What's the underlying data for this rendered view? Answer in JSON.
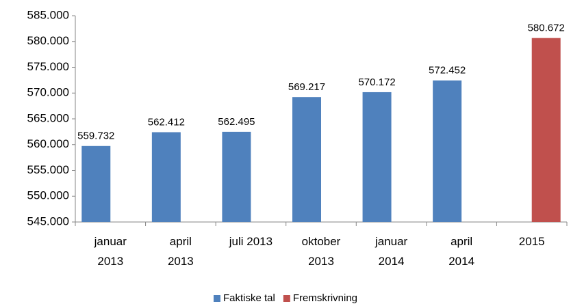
{
  "chart_data": {
    "type": "bar",
    "categories": [
      [
        "januar",
        "2013"
      ],
      [
        "april",
        "2013"
      ],
      [
        "juli 2013"
      ],
      [
        "oktober",
        "2013"
      ],
      [
        "januar",
        "2014"
      ],
      [
        "april",
        "2014"
      ],
      [
        "2015"
      ]
    ],
    "series": [
      {
        "name": "Faktiske tal",
        "color": "#4f81bd",
        "values": [
          559732,
          562412,
          562495,
          569217,
          570172,
          572452,
          null
        ],
        "value_labels": [
          "559.732",
          "562.412",
          "562.495",
          "569.217",
          "570.172",
          "572.452",
          null
        ]
      },
      {
        "name": "Fremskrivning",
        "color": "#c0504d",
        "values": [
          null,
          null,
          null,
          null,
          null,
          null,
          580672
        ],
        "value_labels": [
          null,
          null,
          null,
          null,
          null,
          null,
          "580.672"
        ]
      }
    ],
    "ylim": [
      545000,
      585000
    ],
    "yticks": [
      {
        "value": 545000,
        "label": "545.000"
      },
      {
        "value": 550000,
        "label": "550.000"
      },
      {
        "value": 555000,
        "label": "555.000"
      },
      {
        "value": 560000,
        "label": "560.000"
      },
      {
        "value": 565000,
        "label": "565.000"
      },
      {
        "value": 570000,
        "label": "570.000"
      },
      {
        "value": 575000,
        "label": "575.000"
      },
      {
        "value": 580000,
        "label": "580.000"
      },
      {
        "value": 585000,
        "label": "585.000"
      }
    ],
    "legend": "bottom"
  }
}
